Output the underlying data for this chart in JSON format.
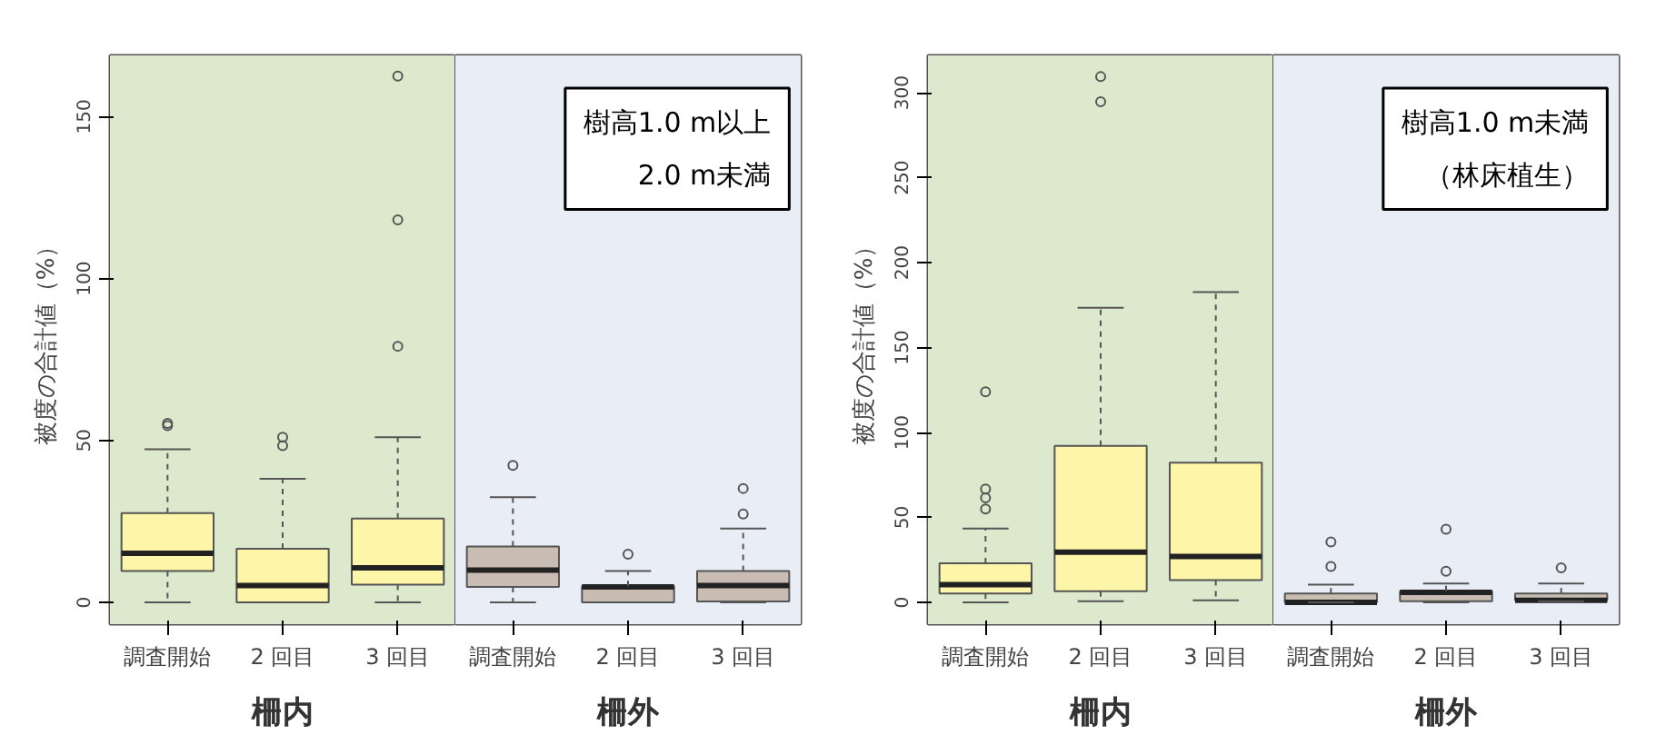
{
  "chart_data": [
    {
      "type": "box",
      "ylabel": "被度の合計値（%）",
      "categories": [
        "調査開始",
        "2 回目",
        "3 回目"
      ],
      "colors": [
        "#fdf5a8",
        "#fdf5a8",
        "#fdf5a8"
      ],
      "boxes": [
        {
          "low": 0,
          "q1": 9.7,
          "median": 15.2,
          "q3": 27.6,
          "high": 47.3,
          "outliers": [
            55.3,
            54.6
          ]
        },
        {
          "low": 0,
          "q1": 0,
          "median": 5.2,
          "q3": 16.6,
          "high": 38.2,
          "outliers": [
            51,
            48.4
          ]
        },
        {
          "low": 0,
          "q1": 5.5,
          "median": 10.7,
          "q3": 25.9,
          "high": 51,
          "outliers": [
            162.5,
            118.1,
            79.1
          ]
        }
      ],
      "ylim": [
        -6.7,
        168.9
      ],
      "yticks": [
        0,
        50,
        100,
        150
      ],
      "bands": [
        {
          "axis": "x",
          "from": "調査開始",
          "to": "3 回目",
          "label": "柵内",
          "color": "#dde9cd"
        }
      ]
    },
    {
      "type": "box",
      "title": "樹高1.0 m以上\n2.0 m未満",
      "categories": [
        "調査開始",
        "2 回目",
        "3 回目"
      ],
      "colors": [
        "#c9bdb3",
        "#c9bdb3",
        "#c9bdb3"
      ],
      "boxes": [
        {
          "low": 0,
          "q1": 4.8,
          "median": 10,
          "q3": 17.3,
          "high": 32.5,
          "outliers": [
            42.3
          ]
        },
        {
          "low": 0,
          "q1": 0,
          "median": 4.8,
          "q3": 5,
          "high": 9.7,
          "outliers": [
            14.9
          ]
        },
        {
          "low": 0,
          "q1": 0.3,
          "median": 5.2,
          "q3": 9.7,
          "high": 22.8,
          "outliers": [
            35.2,
            27.3
          ]
        }
      ],
      "ylim": [
        -6.7,
        168.9
      ],
      "tick_labels": "x",
      "bands": [
        {
          "axis": "x",
          "from": "調査開始",
          "to": "3 回目",
          "label": "柵外",
          "color": "#e8edf6"
        }
      ]
    },
    {
      "type": "box",
      "ylabel": "被度の合計値（%）",
      "categories": [
        "調査開始",
        "2 回目",
        "3 回目"
      ],
      "colors": [
        "#fdf5a8",
        "#fdf5a8",
        "#fdf5a8"
      ],
      "boxes": [
        {
          "low": 0,
          "q1": 5.3,
          "median": 10.5,
          "q3": 23,
          "high": 43.5,
          "outliers": [
            124,
            66.8,
            61.6,
            55
          ]
        },
        {
          "low": 0.7,
          "q1": 6.6,
          "median": 29.6,
          "q3": 92.2,
          "high": 173.5,
          "outliers": [
            309.5,
            294.7
          ]
        },
        {
          "low": 1.3,
          "q1": 13.2,
          "median": 27,
          "q3": 82.3,
          "high": 182.7
        }
      ],
      "ylim": [
        -12.8,
        322
      ],
      "yticks": [
        0,
        50,
        100,
        150,
        200,
        250,
        300
      ],
      "bands": [
        {
          "axis": "x",
          "from": "調査開始",
          "to": "3 回目",
          "label": "柵内",
          "color": "#dde9cd"
        }
      ]
    },
    {
      "type": "box",
      "title": "樹高1.0 m未満（林床植生）",
      "categories": [
        "調査開始",
        "2 回目",
        "3 回目"
      ],
      "colors": [
        "#c9bdb3",
        "#c9bdb3",
        "#c9bdb3"
      ],
      "boxes": [
        {
          "low": 0,
          "q1": 0,
          "median": 0,
          "q3": 5.3,
          "high": 10.5,
          "outliers": [
            35.6,
            21.1
          ]
        },
        {
          "low": 0,
          "q1": 0.7,
          "median": 5.9,
          "q3": 6.6,
          "high": 11.2,
          "outliers": [
            43.1,
            18.4
          ]
        },
        {
          "low": 0.7,
          "q1": 1.3,
          "median": 1.3,
          "q3": 5.3,
          "high": 11.2,
          "outliers": [
            20.4
          ]
        }
      ],
      "ylim": [
        -12.8,
        322
      ],
      "tick_labels": "x",
      "bands": [
        {
          "axis": "x",
          "from": "調査開始",
          "to": "3 回目",
          "label": "柵外",
          "color": "#e8edf6"
        }
      ]
    }
  ]
}
